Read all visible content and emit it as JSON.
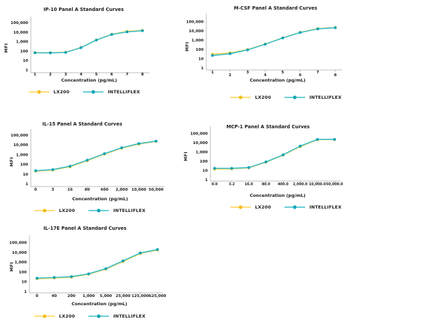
{
  "figure": {
    "description": "Panel A standard curves comparing LX200 and INTELLIFLEX instruments",
    "panel_count": 5
  },
  "colors": {
    "lx200_line": "#FFD44D",
    "lx200_marker": "#F2BE18",
    "intelliflex_line": "#39BEC9",
    "intelliflex_marker": "#0FA3B5",
    "axis_line": "#b9bdc1",
    "text": "#1c1c1c",
    "background": "#ffffff"
  },
  "legend_labels": [
    "LX200",
    "INTELLIFLEX"
  ],
  "chart_data": [
    {
      "type": "line",
      "title": "IP-10 Panel A Standard Curves",
      "xlabel": "Concentration (pg/mL)",
      "ylabel": "MFI",
      "yscale": "log",
      "ylim": [
        1,
        100000
      ],
      "grid": false,
      "legend_position": "bottom",
      "ytick_labels": [
        "100,000",
        "10,000",
        "1,000",
        "100",
        "10",
        "1"
      ],
      "categories": [
        "1",
        "2",
        "3",
        "4",
        "5",
        "6",
        "7",
        "8"
      ],
      "series": [
        {
          "name": "LX200",
          "color": "#FFD44D",
          "marker_color": "#F2BE18",
          "values": [
            68,
            67,
            75,
            235,
            1500,
            6000,
            12000,
            15500
          ]
        },
        {
          "name": "INTELLIFLEX",
          "color": "#39BEC9",
          "marker_color": "#0FA3B5",
          "values": [
            65,
            64,
            72,
            225,
            1450,
            5700,
            10500,
            14000
          ]
        }
      ]
    },
    {
      "type": "line",
      "title": "M-CSF Panel A Standard Curves",
      "xlabel": "Concentration (pg/mL)",
      "ylabel": "MFI",
      "yscale": "log",
      "ylim": [
        1,
        100000
      ],
      "grid": false,
      "legend_position": "bottom",
      "ytick_labels": [
        "100,000",
        "10,000",
        "1,000",
        "100",
        "10",
        "1"
      ],
      "categories": [
        "1",
        "2",
        "3",
        "4",
        "5",
        "6",
        "7",
        "8"
      ],
      "series": [
        {
          "name": "LX200",
          "color": "#FFD44D",
          "marker_color": "#F2BE18",
          "values": [
            30,
            42,
            95,
            380,
            1800,
            7000,
            17500,
            23000
          ]
        },
        {
          "name": "INTELLIFLEX",
          "color": "#39BEC9",
          "marker_color": "#0FA3B5",
          "values": [
            22,
            34,
            88,
            360,
            1700,
            6600,
            16500,
            22000
          ]
        }
      ]
    },
    {
      "type": "line",
      "title": "IL-15 Panel A Standard Curves",
      "xlabel": "Concentration (pg/mL)",
      "ylabel": "MFI",
      "yscale": "log",
      "ylim": [
        1,
        100000
      ],
      "grid": false,
      "legend_position": "bottom",
      "ytick_labels": [
        "100,000",
        "10,000",
        "1,000",
        "100",
        "10",
        "1"
      ],
      "categories": [
        "0",
        "3",
        "16",
        "80",
        "400",
        "2,000",
        "10,000",
        "50,000"
      ],
      "series": [
        {
          "name": "LX200",
          "color": "#FFD44D",
          "marker_color": "#F2BE18",
          "values": [
            20,
            26,
            57,
            240,
            1100,
            4600,
            12000,
            23000
          ]
        },
        {
          "name": "INTELLIFLEX",
          "color": "#39BEC9",
          "marker_color": "#0FA3B5",
          "values": [
            22,
            29,
            66,
            270,
            1250,
            5100,
            13500,
            24500
          ]
        }
      ]
    },
    {
      "type": "line",
      "title": "MCP-1 Panel A Standard Curves",
      "xlabel": "Concentration (pg/mL)",
      "ylabel": "MFI",
      "yscale": "log",
      "ylim": [
        1,
        100000
      ],
      "grid": false,
      "legend_position": "bottom",
      "ytick_labels": [
        "100,000",
        "10,000",
        "1,000",
        "100",
        "10",
        "1"
      ],
      "categories": [
        "0.0",
        "3.2",
        "16.0",
        "80.0",
        "400.0",
        "2,000.0",
        "10,000.0",
        "50,000.0"
      ],
      "series": [
        {
          "name": "LX200",
          "color": "#FFD44D",
          "marker_color": "#F2BE18",
          "values": [
            14,
            15,
            19,
            78,
            450,
            3800,
            21000,
            21500
          ]
        },
        {
          "name": "INTELLIFLEX",
          "color": "#39BEC9",
          "marker_color": "#0FA3B5",
          "values": [
            17,
            17,
            21,
            85,
            490,
            4300,
            22500,
            22500
          ]
        }
      ]
    },
    {
      "type": "line",
      "title": "IL-17E Panel A Standard Curves",
      "xlabel": "Concentration (pg/mL)",
      "ylabel": "MFI",
      "yscale": "log",
      "ylim": [
        1,
        100000
      ],
      "grid": false,
      "legend_position": "bottom",
      "ytick_labels": [
        "100,000",
        "10,000",
        "1,000",
        "100",
        "10",
        "1"
      ],
      "categories": [
        "0",
        "40",
        "200",
        "1,000",
        "5,000",
        "25,000",
        "125,000",
        "625,000"
      ],
      "series": [
        {
          "name": "LX200",
          "color": "#FFD44D",
          "marker_color": "#F2BE18",
          "values": [
            20,
            24,
            29,
            58,
            190,
            1150,
            7500,
            17000
          ]
        },
        {
          "name": "INTELLIFLEX",
          "color": "#39BEC9",
          "marker_color": "#0FA3B5",
          "values": [
            23,
            27,
            33,
            64,
            215,
            1350,
            8500,
            19000
          ]
        }
      ]
    }
  ]
}
